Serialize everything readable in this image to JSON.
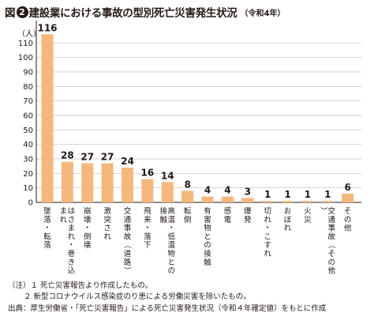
{
  "title": {
    "figure": "図",
    "number": "2",
    "main": "建設業における事故の型別死亡災害発生状況",
    "sub": "（令和4年）"
  },
  "chart_data": {
    "type": "bar",
    "ylabel": "（人）",
    "ylim": [
      0,
      120
    ],
    "yticks": [
      0,
      10,
      20,
      30,
      40,
      50,
      60,
      70,
      80,
      90,
      100,
      110
    ],
    "grid": true,
    "bar_color": "#f5b77c",
    "categories": [
      "墜落・転落",
      "はさまれ・巻き込まれ",
      "崩壊・倒壊",
      "激突され",
      "交通事故（道路）",
      "飛来・落下",
      "高温・低温物との接触",
      "転倒",
      "有害物との接触",
      "感電",
      "爆発",
      "切れ・こすれ",
      "おぼれ",
      "火災",
      "交通事故（その他）",
      "その他"
    ],
    "values": [
      116,
      28,
      27,
      27,
      24,
      16,
      14,
      8,
      4,
      4,
      3,
      1,
      1,
      1,
      1,
      6
    ]
  },
  "notes": {
    "note1": "（注）１ 死亡災害報告より作成したもの。",
    "note2": "２ 新型コロナウイルス感染症のり患による労働災害を除いたもの。",
    "source": "出典：厚生労働省・「死亡災害報告」による死亡災害発生状況（令和４年確定値）をもとに作成"
  }
}
